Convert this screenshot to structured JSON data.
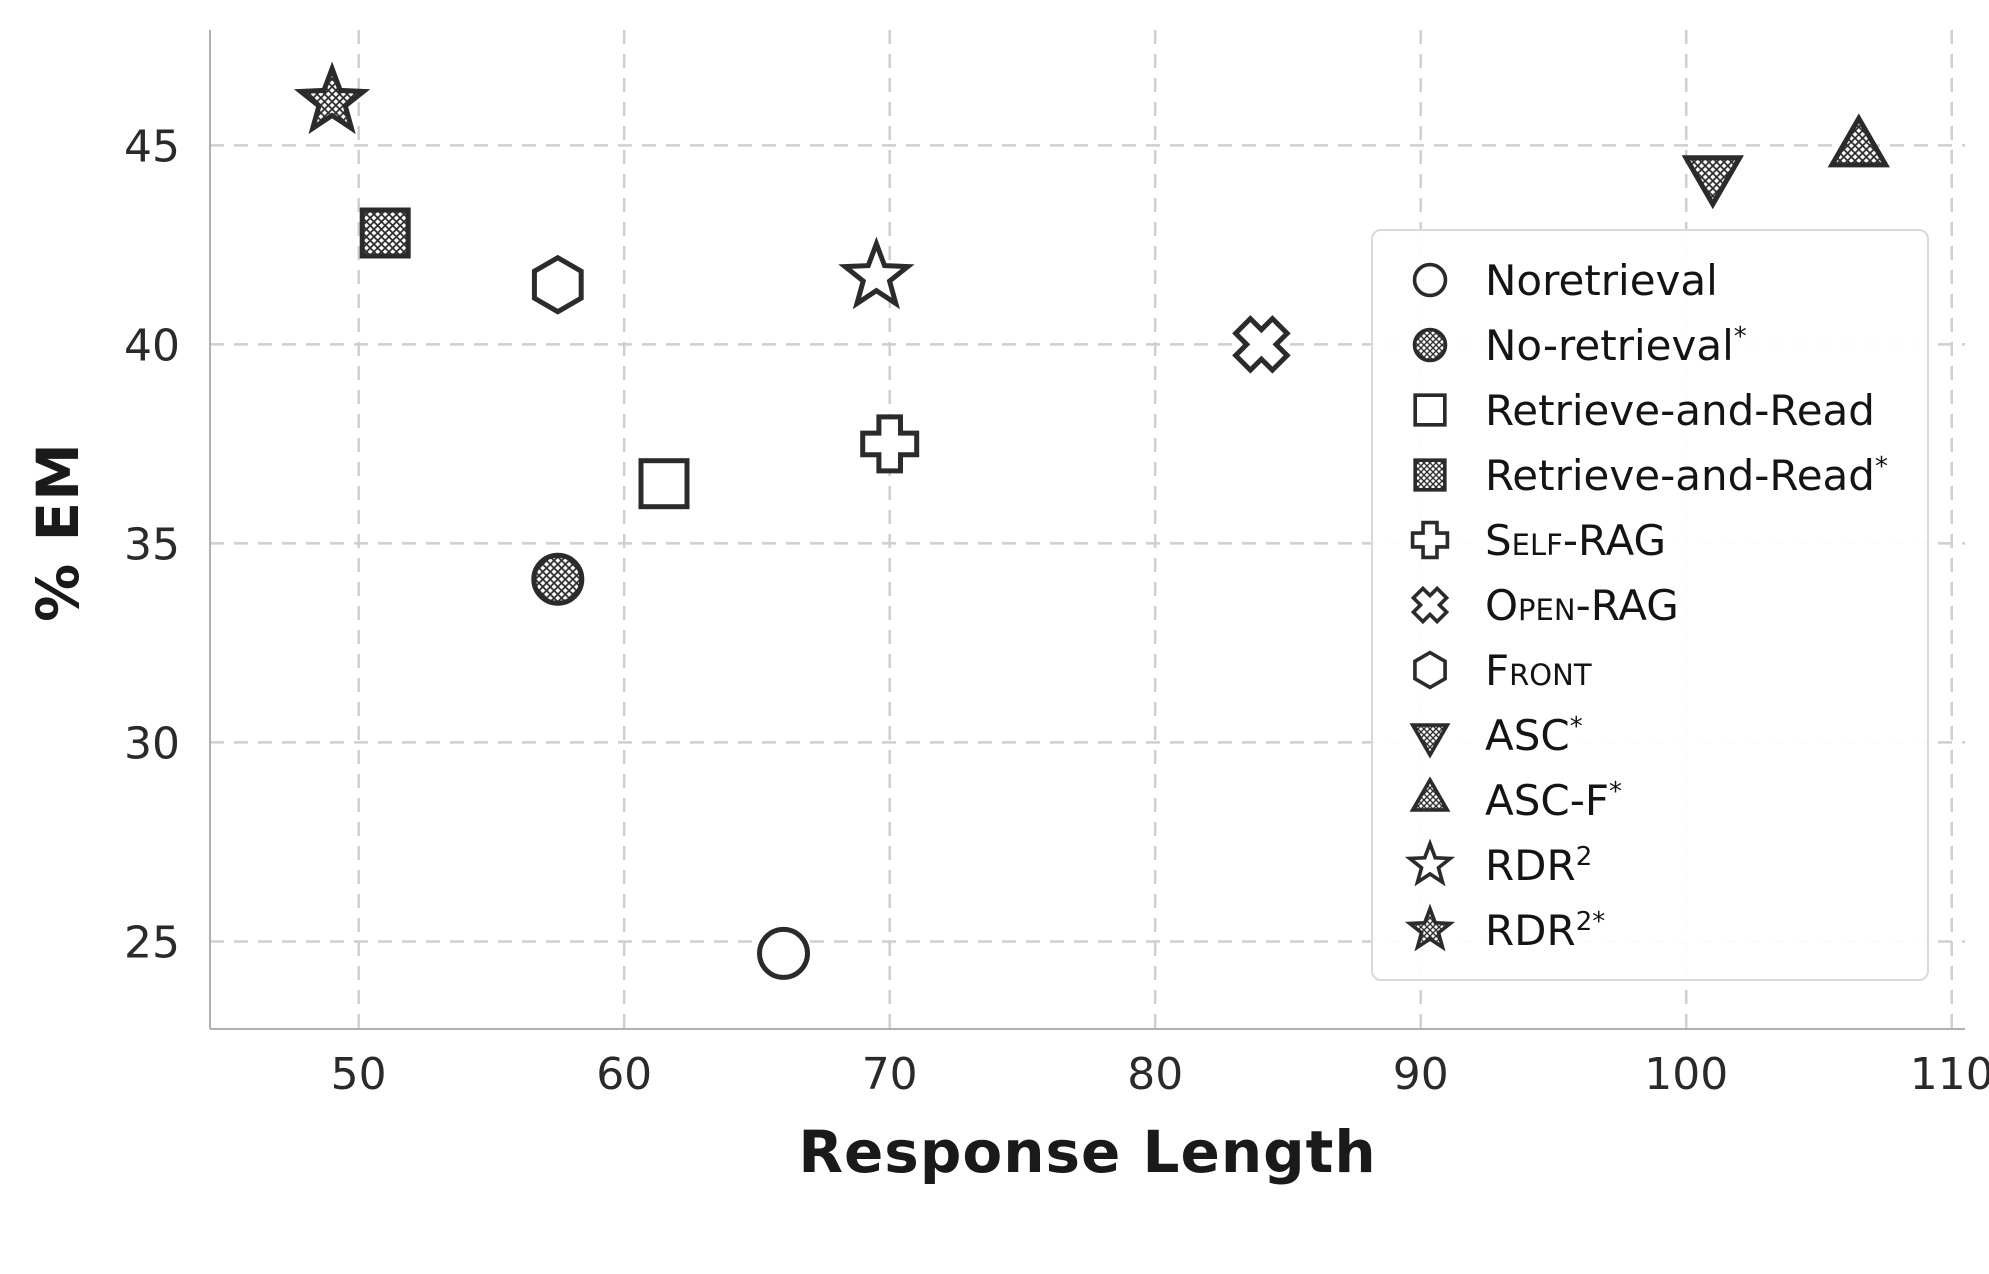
{
  "colors": {
    "marker": "#2b2b2b",
    "grid": "#cfcfcf",
    "spine": "#b0b0b0",
    "text": "#1f1f1f",
    "legend_border": "#d9d9d9"
  },
  "chart_data": {
    "type": "scatter",
    "title": "",
    "xlabel": "Response Length",
    "ylabel": "% EM",
    "xlim": [
      44.4,
      110.5
    ],
    "ylim": [
      22.8,
      47.9
    ],
    "xticks": [
      50,
      60,
      70,
      80,
      90,
      100,
      110
    ],
    "yticks": [
      25,
      30,
      35,
      40,
      45
    ],
    "grid": true,
    "grid_style": "dashed",
    "legend_position": "inside-right",
    "series": [
      {
        "label": "Noretrieval",
        "sup": "",
        "smallcaps": false,
        "marker": "circle",
        "hatch": false,
        "x": 66,
        "y": 24.7
      },
      {
        "label": "No-retrieval",
        "sup": "*",
        "smallcaps": false,
        "marker": "circle",
        "hatch": true,
        "x": 57.5,
        "y": 34.1
      },
      {
        "label": "Retrieve-and-Read",
        "sup": "",
        "smallcaps": false,
        "marker": "square",
        "hatch": false,
        "x": 61.5,
        "y": 36.5
      },
      {
        "label": "Retrieve-and-Read",
        "sup": "*",
        "smallcaps": false,
        "marker": "square",
        "hatch": true,
        "x": 51,
        "y": 42.8
      },
      {
        "label": "Self-RAG",
        "sup": "",
        "smallcaps": true,
        "marker": "plus",
        "hatch": false,
        "x": 70,
        "y": 37.5
      },
      {
        "label": "Open-RAG",
        "sup": "",
        "smallcaps": true,
        "marker": "x",
        "hatch": false,
        "x": 84,
        "y": 40.0
      },
      {
        "label": "Front",
        "sup": "",
        "smallcaps": true,
        "marker": "hexagon",
        "hatch": false,
        "x": 57.5,
        "y": 41.5
      },
      {
        "label": "ASC",
        "sup": "*",
        "smallcaps": false,
        "marker": "triangle-down",
        "hatch": true,
        "x": 101,
        "y": 44.3
      },
      {
        "label": "ASC-F",
        "sup": "*",
        "smallcaps": false,
        "marker": "triangle-up",
        "hatch": true,
        "x": 106.5,
        "y": 44.9
      },
      {
        "label": "RDR",
        "sup": "2",
        "smallcaps": false,
        "marker": "star",
        "hatch": false,
        "x": 69.5,
        "y": 41.7
      },
      {
        "label": "RDR",
        "sup": "2*",
        "smallcaps": false,
        "marker": "star",
        "hatch": true,
        "x": 49,
        "y": 46.1
      }
    ]
  }
}
